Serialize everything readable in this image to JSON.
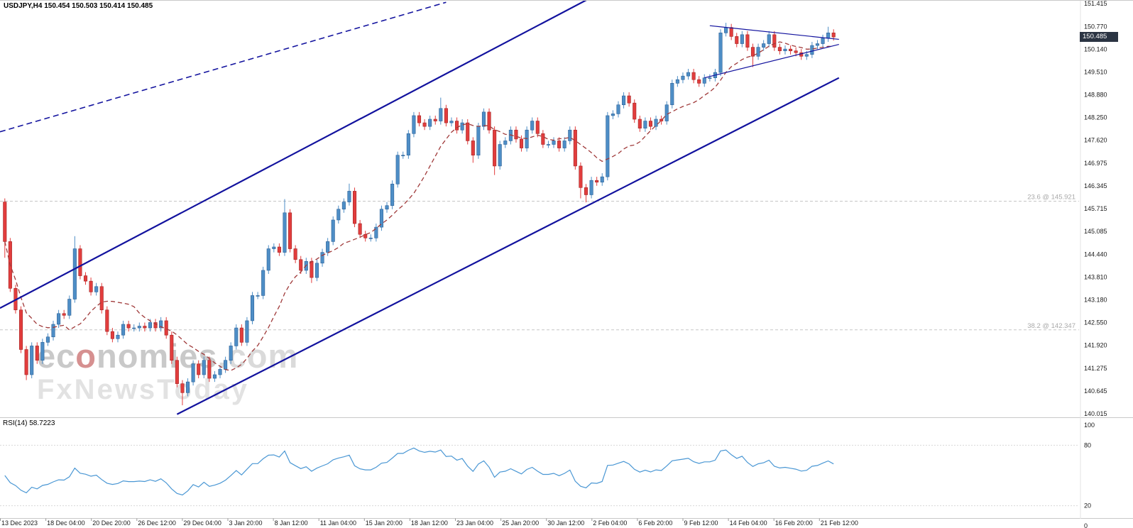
{
  "title": {
    "text": "USDJPY,H4 150.454 150.503 150.414 150.485"
  },
  "watermark": {
    "pre": "ec",
    "o": "o",
    "post": "nomies",
    "dotcom": ".com",
    "line2": "FxNewsToday"
  },
  "colors": {
    "up": "#4e8ec6",
    "up_border": "#2e6298",
    "down": "#e23d3d",
    "down_border": "#a32626",
    "trend": "#12129e",
    "ma": "#a03a3a",
    "rsi_line": "#4a97d4",
    "fib": "#c6c6c6",
    "fib_text": "#a9a9a9",
    "badge_bg": "#2b3443",
    "badge_text": "#ffffff",
    "axis_text": "#1a1a1a",
    "separator": "#c8c8c8"
  },
  "chart_data": {
    "type": "candlestick",
    "title": "USDJPY,H4",
    "symbol": "USDJPY",
    "timeframe": "H4",
    "ohlc": {
      "open": "150.454",
      "high": "150.503",
      "low": "150.414",
      "close": "150.485"
    },
    "current_price": "150.485",
    "price_max": 151.415,
    "price_min": 140.015,
    "y_ticks": [
      "151.415",
      "150.770",
      "150.140",
      "149.510",
      "148.880",
      "148.250",
      "147.620",
      "146.975",
      "146.345",
      "145.715",
      "145.085",
      "144.440",
      "143.810",
      "143.180",
      "142.550",
      "141.920",
      "141.275",
      "140.645",
      "140.015"
    ],
    "x_labels": [
      "13 Dec 2023",
      "18 Dec 04:00",
      "20 Dec 20:00",
      "26 Dec 12:00",
      "29 Dec 04:00",
      "3 Jan 20:00",
      "8 Jan 12:00",
      "11 Jan 04:00",
      "15 Jan 20:00",
      "18 Jan 12:00",
      "23 Jan 04:00",
      "25 Jan 20:00",
      "30 Jan 12:00",
      "2 Feb 04:00",
      "6 Feb 20:00",
      "9 Feb 12:00",
      "14 Feb 04:00",
      "16 Feb 20:00",
      "21 Feb 12:00"
    ],
    "open_start": 145.9,
    "default_wick": 0.1,
    "closes": [
      144.8,
      143.5,
      142.9,
      141.8,
      141.1,
      141.9,
      141.5,
      142.0,
      142.15,
      142.5,
      142.8,
      142.75,
      143.2,
      144.6,
      143.85,
      143.7,
      143.4,
      143.55,
      142.9,
      142.3,
      142.1,
      142.2,
      142.5,
      142.4,
      142.4,
      142.45,
      142.4,
      142.55,
      142.4,
      142.6,
      142.2,
      141.5,
      140.85,
      140.6,
      140.9,
      141.4,
      141.1,
      141.5,
      141.0,
      141.1,
      141.25,
      141.5,
      141.9,
      142.4,
      142.0,
      142.6,
      143.3,
      143.3,
      144.0,
      144.6,
      144.65,
      144.5,
      145.6,
      144.6,
      144.3,
      144.0,
      144.25,
      143.8,
      144.2,
      144.5,
      144.8,
      145.4,
      145.7,
      145.9,
      146.2,
      145.3,
      145.0,
      144.9,
      144.9,
      145.2,
      145.7,
      145.8,
      146.4,
      147.2,
      147.2,
      147.8,
      148.3,
      148.1,
      148.0,
      148.2,
      148.15,
      148.5,
      148.1,
      148.15,
      147.9,
      148.1,
      147.6,
      147.2,
      148.0,
      148.4,
      147.9,
      146.9,
      147.5,
      147.6,
      147.9,
      147.65,
      147.4,
      147.9,
      148.15,
      147.8,
      147.5,
      147.5,
      147.6,
      147.4,
      147.6,
      147.9,
      146.9,
      146.3,
      146.1,
      146.5,
      146.45,
      146.6,
      148.3,
      148.35,
      148.6,
      148.85,
      148.65,
      148.2,
      147.95,
      148.15,
      148.0,
      148.2,
      148.15,
      148.6,
      149.2,
      149.3,
      149.4,
      149.5,
      149.3,
      149.2,
      149.35,
      149.35,
      149.5,
      150.6,
      150.75,
      150.5,
      150.3,
      150.55,
      150.2,
      149.95,
      150.2,
      150.3,
      150.55,
      150.2,
      150.1,
      150.15,
      150.1,
      150.05,
      149.95,
      150.0,
      150.25,
      150.3,
      150.45,
      150.6,
      150.485
    ],
    "extremes": {
      "0": [
        145.95,
        144.35
      ],
      "4": [
        141.7,
        140.95
      ],
      "13": [
        144.95,
        null
      ],
      "32": [
        null,
        140.8
      ],
      "33": [
        null,
        140.25
      ],
      "52": [
        145.98,
        null
      ],
      "57": [
        null,
        143.65
      ],
      "64": [
        146.41,
        null
      ],
      "81": [
        148.8,
        null
      ],
      "87": [
        null,
        146.99
      ],
      "91": [
        null,
        146.65
      ],
      "107": [
        null,
        146.0
      ],
      "108": [
        null,
        145.89
      ],
      "127": [
        149.57,
        null
      ],
      "133": [
        150.7,
        null
      ],
      "134": [
        150.88,
        null
      ],
      "139": [
        null,
        149.65
      ],
      "142": [
        150.63,
        null
      ],
      "153": [
        150.77,
        null
      ]
    },
    "ma": {
      "period": 12
    },
    "overlays": {
      "fib_levels": [
        {
          "label": "23.6 @ 145.921",
          "price": 145.921
        },
        {
          "label": "38.2 @ 142.347",
          "price": 142.347
        }
      ],
      "trendlines": [
        {
          "name": "upper-dashed-trendline",
          "i1": -0.9,
          "p1": 147.85,
          "i2": 82,
          "p2": 151.45,
          "style": "dashed",
          "width": 1.6
        },
        {
          "name": "channel-upper-trendline",
          "i1": -0.9,
          "p1": 142.95,
          "i2": 155,
          "p2": 155.2,
          "style": "solid",
          "width": 2.2
        },
        {
          "name": "channel-lower-trendline",
          "i1": 32,
          "p1": 140.0,
          "i2": 155,
          "p2": 149.35,
          "style": "solid",
          "width": 2.2
        },
        {
          "name": "triangle-upper-trendline",
          "i1": 131,
          "p1": 150.8,
          "i2": 155,
          "p2": 150.42,
          "style": "solid",
          "width": 1.2
        },
        {
          "name": "triangle-lower-trendline",
          "i1": 130,
          "p1": 149.35,
          "i2": 155,
          "p2": 150.28,
          "style": "solid",
          "width": 1.2
        }
      ]
    },
    "rsi": {
      "label": "RSI(14) 58.7223",
      "period": 14,
      "value": "58.7223",
      "ticks": [
        "100",
        "80",
        "20",
        "0"
      ],
      "levels": [
        80,
        20
      ],
      "range": [
        0,
        100
      ]
    }
  }
}
